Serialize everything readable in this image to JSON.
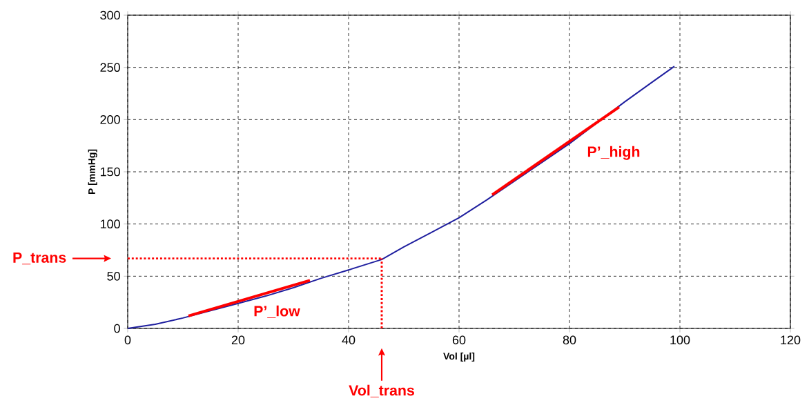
{
  "chart_data": {
    "type": "line",
    "xlabel": "Vol [µl]",
    "ylabel": "P [mmHg]",
    "xlim": [
      0,
      120
    ],
    "ylim": [
      0,
      300
    ],
    "xticks": [
      0,
      20,
      40,
      60,
      80,
      100,
      120
    ],
    "yticks": [
      0,
      50,
      100,
      150,
      200,
      250,
      300
    ],
    "grid": true,
    "series": [
      {
        "color": "#1f1f9f",
        "line_style": "solid",
        "x": [
          0,
          5,
          10,
          15,
          20,
          25,
          30,
          35,
          40,
          46,
          50,
          55,
          60,
          65,
          70,
          75,
          80,
          85,
          90,
          95,
          99
        ],
        "values": [
          0,
          4,
          10,
          17,
          24,
          31,
          39,
          48,
          56,
          66,
          78,
          92,
          106,
          123,
          141,
          159,
          177,
          197,
          217,
          236,
          251
        ]
      },
      {
        "color": "#ff0000",
        "line_style": "solid",
        "x": [
          11,
          33
        ],
        "values": [
          12,
          46
        ]
      },
      {
        "color": "#ff0000",
        "line_style": "solid",
        "x": [
          66,
          89
        ],
        "values": [
          128,
          212
        ]
      },
      {
        "color": "#ff0000",
        "line_style": "dotted",
        "x": [
          0,
          46
        ],
        "values": [
          67,
          67
        ]
      },
      {
        "color": "#ff0000",
        "line_style": "dotted",
        "x": [
          46,
          46
        ],
        "values": [
          0,
          67
        ]
      }
    ],
    "annotations": [
      "P_trans",
      "Vol_trans",
      "P’_low",
      "P’_high"
    ]
  }
}
